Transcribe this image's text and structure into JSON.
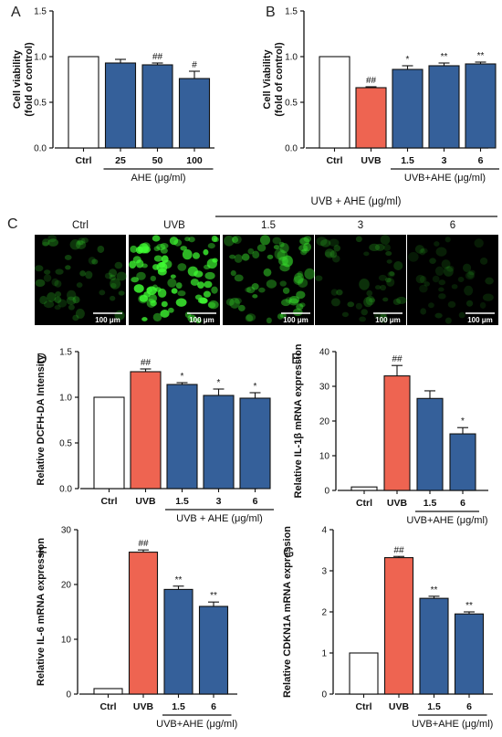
{
  "colors": {
    "ctrl": "#ffffff",
    "uvb": "#ee6451",
    "ahe": "#35609a",
    "axis": "#111111"
  },
  "chart_data": [
    {
      "panel": "A",
      "type": "bar",
      "ylabel": [
        "Cell viability",
        "(fold of control)"
      ],
      "ylim": [
        0,
        1.5
      ],
      "yticks": [
        "0.0",
        "0.5",
        "1.0",
        "1.5"
      ],
      "categories": [
        "Ctrl",
        "25",
        "50",
        "100"
      ],
      "values": [
        1.0,
        0.93,
        0.91,
        0.76
      ],
      "errors": [
        0.0,
        0.04,
        0.02,
        0.08
      ],
      "sig": [
        "",
        "",
        "##",
        "#"
      ],
      "group": {
        "label": "AHE (μg/ml)",
        "from": 1,
        "to": 3
      },
      "bar_colors": [
        "ctrl",
        "ahe",
        "ahe",
        "ahe"
      ]
    },
    {
      "panel": "B",
      "type": "bar",
      "ylabel": [
        "Cell Viability",
        "(fold of control)"
      ],
      "ylim": [
        0,
        1.5
      ],
      "yticks": [
        "0.0",
        "0.5",
        "1.0",
        "1.5"
      ],
      "categories": [
        "Ctrl",
        "UVB",
        "1.5",
        "3",
        "6"
      ],
      "values": [
        1.0,
        0.66,
        0.86,
        0.9,
        0.92
      ],
      "errors": [
        0.0,
        0.01,
        0.04,
        0.03,
        0.02
      ],
      "sig": [
        "",
        "##",
        "*",
        "**",
        "**"
      ],
      "group": {
        "label": "UVB+AHE (μg/ml)",
        "from": 2,
        "to": 4
      },
      "bar_colors": [
        "ctrl",
        "uvb",
        "ahe",
        "ahe",
        "ahe"
      ]
    },
    {
      "panel": "D",
      "type": "bar",
      "ylabel": [
        "Relative DCFH-DA Intensity"
      ],
      "ylim": [
        0,
        1.5
      ],
      "yticks": [
        "0.0",
        "0.5",
        "1.0",
        "1.5"
      ],
      "categories": [
        "Ctrl",
        "UVB",
        "1.5",
        "3",
        "6"
      ],
      "values": [
        1.0,
        1.28,
        1.14,
        1.02,
        0.99
      ],
      "errors": [
        0.0,
        0.03,
        0.02,
        0.07,
        0.06
      ],
      "sig": [
        "",
        "##",
        "*",
        "*",
        "*"
      ],
      "group": {
        "label": "UVB + AHE   (μg/ml)",
        "from": 2,
        "to": 4
      },
      "bar_colors": [
        "ctrl",
        "uvb",
        "ahe",
        "ahe",
        "ahe"
      ]
    },
    {
      "panel": "E",
      "type": "bar",
      "ylabel": [
        "Relative IL-1β mRNA expression"
      ],
      "ylim": [
        0,
        40
      ],
      "yticks": [
        "0",
        "10",
        "20",
        "30",
        "40"
      ],
      "categories": [
        "Ctrl",
        "UVB",
        "1.5",
        "6"
      ],
      "values": [
        1.0,
        33.0,
        26.5,
        16.3
      ],
      "errors": [
        0.0,
        3.0,
        2.2,
        1.8
      ],
      "sig": [
        "",
        "##",
        "",
        "*"
      ],
      "group": {
        "label": "UVB+AHE (μg/ml)",
        "from": 2,
        "to": 3
      },
      "bar_colors": [
        "ctrl",
        "uvb",
        "ahe",
        "ahe"
      ]
    },
    {
      "panel": "F",
      "type": "bar",
      "ylabel": [
        "Relative IL-6 mRNA expression"
      ],
      "ylim": [
        0,
        30
      ],
      "yticks": [
        "0",
        "10",
        "20",
        "30"
      ],
      "categories": [
        "Ctrl",
        "UVB",
        "1.5",
        "6"
      ],
      "values": [
        1.0,
        25.9,
        19.1,
        16.0
      ],
      "errors": [
        0.0,
        0.4,
        0.6,
        0.8
      ],
      "sig": [
        "",
        "##",
        "**",
        "**"
      ],
      "group": {
        "label": "UVB+AHE (μg/ml)",
        "from": 2,
        "to": 3
      },
      "bar_colors": [
        "ctrl",
        "uvb",
        "ahe",
        "ahe"
      ]
    },
    {
      "panel": "G",
      "type": "bar",
      "ylabel": [
        "Relative CDKN1A mRNA expression"
      ],
      "ylim": [
        0,
        4
      ],
      "yticks": [
        "0",
        "1",
        "2",
        "3",
        "4"
      ],
      "categories": [
        "Ctrl",
        "UVB",
        "1.5",
        "6"
      ],
      "values": [
        1.0,
        3.32,
        2.33,
        1.95
      ],
      "errors": [
        0.0,
        0.03,
        0.05,
        0.05
      ],
      "sig": [
        "",
        "##",
        "**",
        "**"
      ],
      "group": {
        "label": "UVB+AHE (μg/ml)",
        "from": 2,
        "to": 3
      },
      "bar_colors": [
        "ctrl",
        "uvb",
        "ahe",
        "ahe"
      ]
    }
  ],
  "micrographs": {
    "panel": "C",
    "group_label": "UVB + AHE  (μg/ml)",
    "scale_label": "100 μm",
    "items": [
      {
        "title": "Ctrl",
        "intensity": 0.35
      },
      {
        "title": "UVB",
        "intensity": 1.0
      },
      {
        "title": "1.5",
        "intensity": 0.6
      },
      {
        "title": "3",
        "intensity": 0.28
      },
      {
        "title": "6",
        "intensity": 0.18
      }
    ]
  }
}
